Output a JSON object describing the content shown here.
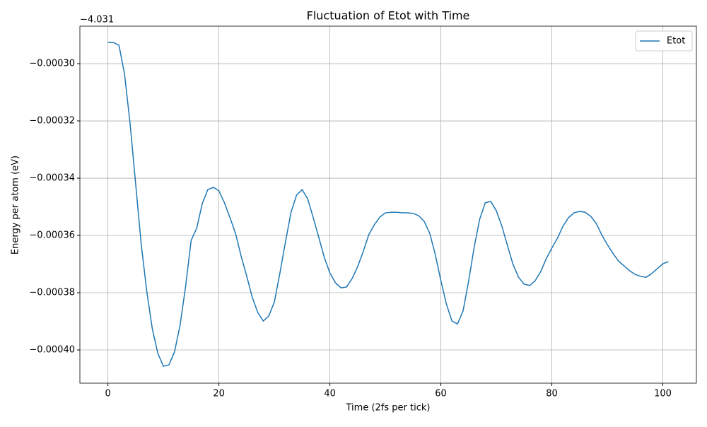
{
  "chart_data": {
    "type": "line",
    "title": "Fluctuation of Etot with Time",
    "x_label": "Time (2fs per tick)",
    "y_label": "Energy per atom (eV)",
    "y_offset_label": "−4.031",
    "x": [
      0,
      1,
      2,
      3,
      4,
      5,
      6,
      7,
      8,
      9,
      10,
      11,
      12,
      13,
      14,
      15,
      16,
      17,
      18,
      19,
      20,
      21,
      22,
      23,
      24,
      25,
      26,
      27,
      28,
      29,
      30,
      31,
      32,
      33,
      34,
      35,
      36,
      37,
      38,
      39,
      40,
      41,
      42,
      43,
      44,
      45,
      46,
      47,
      48,
      49,
      50,
      51,
      52,
      53,
      54,
      55,
      56,
      57,
      58,
      59,
      60,
      61,
      62,
      63,
      64,
      65,
      66,
      67,
      68,
      69,
      70,
      71,
      72,
      73,
      74,
      75,
      76,
      77,
      78,
      79,
      80,
      81,
      82,
      83,
      84,
      85,
      86,
      87,
      88,
      89,
      90,
      91,
      92,
      93,
      94,
      95,
      96,
      97,
      98,
      99,
      100,
      101
    ],
    "series": [
      {
        "name": "Etot",
        "color": "#1f77b4",
        "values": [
          -0.0002926,
          -0.0002926,
          -0.0002936,
          -0.0003037,
          -0.000321,
          -0.000342,
          -0.000363,
          -0.0003795,
          -0.0003926,
          -0.0004012,
          -0.0004057,
          -0.0004052,
          -0.0004007,
          -0.0003914,
          -0.0003778,
          -0.0003617,
          -0.0003575,
          -0.0003489,
          -0.000344,
          -0.0003432,
          -0.0003444,
          -0.0003486,
          -0.0003538,
          -0.0003593,
          -0.0003672,
          -0.0003741,
          -0.0003815,
          -0.0003869,
          -0.0003899,
          -0.0003881,
          -0.0003832,
          -0.0003731,
          -0.0003622,
          -0.0003519,
          -0.0003459,
          -0.000344,
          -0.0003472,
          -0.0003538,
          -0.0003607,
          -0.0003677,
          -0.0003731,
          -0.0003765,
          -0.0003783,
          -0.000378,
          -0.0003751,
          -0.0003709,
          -0.0003657,
          -0.0003598,
          -0.0003563,
          -0.0003536,
          -0.0003521,
          -0.0003519,
          -0.0003519,
          -0.0003521,
          -0.0003521,
          -0.0003523,
          -0.0003531,
          -0.0003551,
          -0.0003593,
          -0.0003667,
          -0.0003758,
          -0.000384,
          -0.0003899,
          -0.0003909,
          -0.0003864,
          -0.000376,
          -0.0003642,
          -0.0003543,
          -0.0003486,
          -0.0003481,
          -0.0003514,
          -0.0003568,
          -0.0003635,
          -0.0003701,
          -0.0003746,
          -0.000377,
          -0.0003775,
          -0.0003758,
          -0.0003726,
          -0.0003681,
          -0.0003644,
          -0.000361,
          -0.0003568,
          -0.0003538,
          -0.0003521,
          -0.0003516,
          -0.0003519,
          -0.0003533,
          -0.0003558,
          -0.0003598,
          -0.0003632,
          -0.0003662,
          -0.0003689,
          -0.0003706,
          -0.0003723,
          -0.0003736,
          -0.0003743,
          -0.0003746,
          -0.0003733,
          -0.0003716,
          -0.0003699,
          -0.0003691
        ]
      }
    ],
    "xlim": [
      -5.05,
      106.05
    ],
    "xticks": [
      0,
      20,
      40,
      60,
      80,
      100
    ],
    "ylim": [
      -0.0004116,
      -0.0002869
    ],
    "yticks": [
      {
        "value": -0.0004,
        "label": "−0.00040"
      },
      {
        "value": -0.00038,
        "label": "−0.00038"
      },
      {
        "value": -0.00036,
        "label": "−0.00036"
      },
      {
        "value": -0.00034,
        "label": "−0.00034"
      },
      {
        "value": -0.00032,
        "label": "−0.00032"
      },
      {
        "value": -0.0003,
        "label": "−0.00030"
      }
    ],
    "grid": true,
    "legend": "upper-right"
  }
}
